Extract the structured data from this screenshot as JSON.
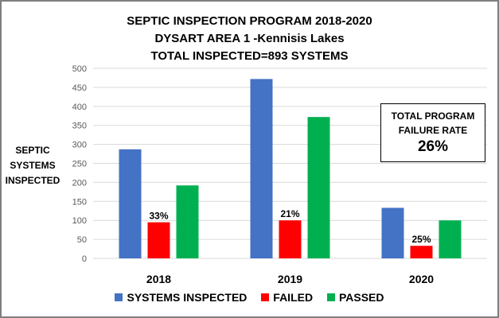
{
  "chart_data": {
    "type": "bar",
    "title_lines": [
      "SEPTIC INSPECTION PROGRAM 2018-2020",
      "DYSART AREA 1 -Kennisis Lakes",
      "TOTAL INSPECTED=893 SYSTEMS"
    ],
    "ylabel_lines": [
      "SEPTIC",
      "SYSTEMS",
      "INSPECTED"
    ],
    "xlabel": "",
    "categories": [
      "2018",
      "2019",
      "2020"
    ],
    "series": [
      {
        "name": "SYSTEMS INSPECTED",
        "color": "#4472c4",
        "values": [
          287,
          472,
          133
        ]
      },
      {
        "name": "FAILED",
        "color": "#ff0000",
        "values": [
          95,
          100,
          33
        ]
      },
      {
        "name": "PASSED",
        "color": "#00b050",
        "values": [
          192,
          372,
          100
        ]
      }
    ],
    "data_labels": {
      "series": "FAILED",
      "labels": [
        "33%",
        "21%",
        "25%"
      ]
    },
    "ylim": [
      0,
      500
    ],
    "yticks": [
      0,
      50,
      100,
      150,
      200,
      250,
      300,
      350,
      400,
      450,
      500
    ],
    "grid": true,
    "legend_position": "bottom",
    "annotation": {
      "label_lines": [
        "TOTAL PROGRAM",
        "FAILURE RATE"
      ],
      "value": "26%"
    }
  }
}
